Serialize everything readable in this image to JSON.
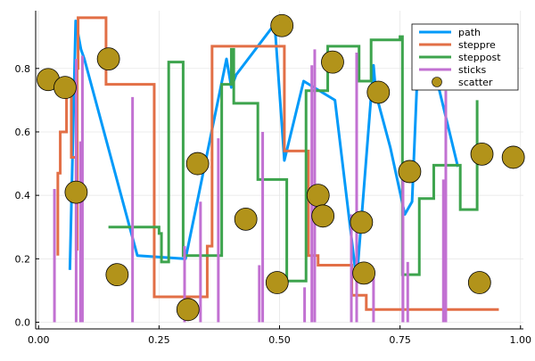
{
  "chart_data": {
    "type": "line",
    "title": "",
    "xlabel": "",
    "ylabel": "",
    "xlim": [
      -0.006,
      1.006
    ],
    "ylim": [
      -0.021,
      0.982
    ],
    "grid": true,
    "legend_position": "top-right",
    "x_ticks": [
      0.0,
      0.25,
      0.5,
      0.75,
      1.0
    ],
    "x_tick_labels": [
      "0.00",
      "0.25",
      "0.50",
      "0.75",
      "1.00"
    ],
    "y_ticks": [
      0.0,
      0.2,
      0.4,
      0.6,
      0.8
    ],
    "y_tick_labels": [
      "0.0",
      "0.2",
      "0.4",
      "0.6",
      "0.8"
    ],
    "series": [
      {
        "name": "path",
        "kind": "line",
        "color": "#009af9",
        "x": [
          0.065,
          0.077,
          0.088,
          0.095,
          0.205,
          0.305,
          0.39,
          0.4,
          0.41,
          0.49,
          0.51,
          0.55,
          0.615,
          0.66,
          0.695,
          0.7,
          0.73,
          0.76,
          0.775,
          0.79,
          0.8,
          0.87
        ],
        "y": [
          0.165,
          0.95,
          0.86,
          0.83,
          0.21,
          0.2,
          0.83,
          0.74,
          0.78,
          0.94,
          0.51,
          0.76,
          0.7,
          0.13,
          0.81,
          0.72,
          0.55,
          0.34,
          0.38,
          0.93,
          0.93,
          0.49
        ]
      },
      {
        "name": "steppre",
        "kind": "steppre",
        "color": "#e26f46",
        "x": [
          0.04,
          0.045,
          0.058,
          0.068,
          0.078,
          0.08,
          0.082,
          0.14,
          0.21,
          0.24,
          0.35,
          0.36,
          0.51,
          0.56,
          0.58,
          0.65,
          0.68,
          0.7,
          0.76,
          0.88,
          0.955
        ],
        "y": [
          0.21,
          0.47,
          0.6,
          0.76,
          0.52,
          0.23,
          0.8,
          0.96,
          0.75,
          0.75,
          0.08,
          0.24,
          0.87,
          0.54,
          0.21,
          0.18,
          0.085,
          0.04,
          0.04,
          0.04,
          0.04
        ]
      },
      {
        "name": "steppost",
        "kind": "steppost",
        "color": "#3da44d",
        "x": [
          0.145,
          0.25,
          0.255,
          0.27,
          0.3,
          0.38,
          0.4,
          0.405,
          0.455,
          0.515,
          0.555,
          0.6,
          0.665,
          0.69,
          0.75,
          0.755,
          0.79,
          0.82,
          0.875,
          0.91
        ],
        "y": [
          0.3,
          0.28,
          0.19,
          0.82,
          0.21,
          0.75,
          0.86,
          0.69,
          0.45,
          0.13,
          0.73,
          0.87,
          0.76,
          0.89,
          0.9,
          0.15,
          0.39,
          0.495,
          0.355,
          0.7
        ]
      },
      {
        "name": "sticks",
        "kind": "sticks",
        "color": "#c271d2",
        "x": [
          0.033,
          0.078,
          0.087,
          0.091,
          0.195,
          0.303,
          0.336,
          0.373,
          0.458,
          0.465,
          0.552,
          0.567,
          0.573,
          0.649,
          0.66,
          0.695,
          0.756,
          0.756,
          0.766,
          0.84,
          0.845
        ],
        "y": [
          0.42,
          0.83,
          0.57,
          0.84,
          0.71,
          0.24,
          0.38,
          0.58,
          0.18,
          0.6,
          0.11,
          0.81,
          0.86,
          0.34,
          0.85,
          0.15,
          0.46,
          0.47,
          0.19,
          0.45,
          0.73
        ]
      },
      {
        "name": "scatter",
        "kind": "scatter",
        "color": "#b2931a",
        "x": [
          0.02,
          0.055,
          0.078,
          0.145,
          0.163,
          0.31,
          0.33,
          0.43,
          0.495,
          0.505,
          0.58,
          0.59,
          0.61,
          0.67,
          0.675,
          0.705,
          0.77,
          0.915,
          0.92,
          0.985
        ],
        "y": [
          0.765,
          0.74,
          0.41,
          0.83,
          0.15,
          0.04,
          0.5,
          0.325,
          0.125,
          0.935,
          0.4,
          0.335,
          0.82,
          0.315,
          0.155,
          0.725,
          0.475,
          0.125,
          0.53,
          0.52
        ]
      }
    ]
  }
}
